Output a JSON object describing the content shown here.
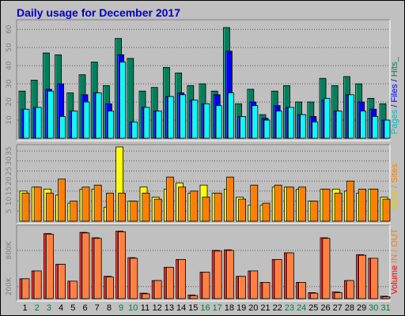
{
  "title": "Daily usage for December 2017",
  "colors": {
    "hits": "#00805c",
    "files": "#0000ff",
    "pages": "#00ffff",
    "visits": "#ffff00",
    "sites": "#ff8000",
    "kbytes": "#ff0000",
    "volume_fill": "#ff8040",
    "weekend": "#008040",
    "weekday": "#000000",
    "axis_text": "#808080"
  },
  "right_labels": {
    "top": [
      {
        "text": "Pages",
        "color": "#00c0c0"
      },
      {
        "text": " / ",
        "color": "#0000c0"
      },
      {
        "text": "Files",
        "color": "#0000ff"
      },
      {
        "text": " / ",
        "color": "#0000c0"
      },
      {
        "text": "Hits",
        "color": "#00805c"
      },
      {
        "text": "_",
        "color": "#00805c"
      }
    ],
    "middle": [
      {
        "text": "Visits",
        "color": "#e8c800"
      },
      {
        "text": " / ",
        "color": "#ff8000"
      },
      {
        "text": "Sites",
        "color": "#ff8000"
      }
    ],
    "bottom": [
      {
        "text": "Volume",
        "color": "#ff0000"
      },
      {
        "text": " ",
        "color": "#ff0000"
      },
      {
        "text": "IN",
        "color": "#ff8000"
      },
      {
        "text": " / ",
        "color": "#ff8000"
      },
      {
        "text": "OUT",
        "color": "#ff8000"
      }
    ]
  },
  "chart_data": [
    {
      "type": "bar",
      "panel": "hits_files_pages",
      "x": [
        1,
        2,
        3,
        4,
        5,
        6,
        7,
        8,
        9,
        10,
        11,
        12,
        13,
        14,
        15,
        16,
        17,
        18,
        19,
        20,
        21,
        22,
        23,
        24,
        25,
        26,
        27,
        28,
        29,
        30,
        31
      ],
      "x_labels": [
        "1",
        "2",
        "3",
        "4",
        "5",
        "6",
        "7",
        "8",
        "9",
        "10",
        "11",
        "12",
        "13",
        "14",
        "15",
        "16",
        "17",
        "18",
        "19",
        "20",
        "21",
        "22",
        "23",
        "24",
        "25",
        "26",
        "27",
        "28",
        "29",
        "30",
        "31"
      ],
      "weekend_days": [
        2,
        3,
        9,
        10,
        16,
        17,
        23,
        24,
        30,
        31
      ],
      "yticks": [
        10,
        20,
        30,
        40,
        50,
        60
      ],
      "ylim": [
        0,
        64
      ],
      "series": [
        {
          "name": "Hits",
          "color": "#00805c",
          "values": [
            26,
            32,
            47,
            46,
            25,
            35,
            42,
            29,
            55,
            44,
            26,
            28,
            39,
            36,
            29,
            30,
            26,
            61,
            19,
            27,
            13,
            26,
            29,
            20,
            20,
            33,
            29,
            34,
            30,
            22,
            19
          ]
        },
        {
          "name": "Files",
          "color": "#0000ff",
          "values": [
            16,
            17,
            27,
            30,
            15,
            24,
            25,
            19,
            46,
            9,
            17,
            15,
            23,
            25,
            21,
            19,
            24,
            48,
            12,
            20,
            11,
            18,
            17,
            13,
            12,
            21,
            15,
            24,
            20,
            16,
            10
          ]
        },
        {
          "name": "Pages",
          "color": "#00ffff",
          "values": [
            16,
            17,
            26,
            12,
            15,
            20,
            25,
            15,
            42,
            9,
            17,
            15,
            23,
            24,
            21,
            19,
            18,
            25,
            12,
            18,
            10,
            15,
            17,
            13,
            9,
            22,
            15,
            24,
            15,
            12,
            10
          ]
        }
      ]
    },
    {
      "type": "bar",
      "panel": "visits_sites",
      "x": [
        1,
        2,
        3,
        4,
        5,
        6,
        7,
        8,
        9,
        10,
        11,
        12,
        13,
        14,
        15,
        16,
        17,
        18,
        19,
        20,
        21,
        22,
        23,
        24,
        25,
        26,
        27,
        28,
        29,
        30,
        31
      ],
      "yticks": [
        5,
        10,
        15,
        20,
        25,
        30,
        35
      ],
      "ylim": [
        0,
        37
      ],
      "series": [
        {
          "name": "Visits",
          "color": "#ffff00",
          "values": [
            15,
            17,
            16,
            13,
            9,
            16,
            16,
            7,
            37,
            10,
            17,
            12,
            16,
            19,
            14,
            18,
            14,
            16,
            12,
            8,
            8,
            17,
            17,
            16,
            10,
            16,
            16,
            15,
            14,
            16,
            12
          ]
        },
        {
          "name": "Sites",
          "color": "#ff8000",
          "values": [
            14,
            17,
            14,
            21,
            10,
            17,
            18,
            14,
            14,
            10,
            14,
            11,
            22,
            17,
            15,
            12,
            14,
            22,
            11,
            18,
            9,
            18,
            17,
            17,
            10,
            16,
            14,
            20,
            16,
            16,
            11
          ]
        }
      ]
    },
    {
      "type": "bar",
      "panel": "volume",
      "x": [
        1,
        2,
        3,
        4,
        5,
        6,
        7,
        8,
        9,
        10,
        11,
        12,
        13,
        14,
        15,
        16,
        17,
        18,
        19,
        20,
        21,
        22,
        23,
        24,
        25,
        26,
        27,
        28,
        29,
        30,
        31
      ],
      "ytick_labels": [
        "200K",
        "800K"
      ],
      "yticks": [
        200000,
        800000
      ],
      "ylim": [
        0,
        1180000
      ],
      "series": [
        {
          "name": "KBytes",
          "color": "#ff0000",
          "values": [
            330000,
            460000,
            1080000,
            570000,
            290000,
            1100000,
            1010000,
            370000,
            1120000,
            680000,
            90000,
            300000,
            520000,
            650000,
            60000,
            440000,
            800000,
            810000,
            370000,
            460000,
            270000,
            650000,
            760000,
            270000,
            100000,
            1010000,
            110000,
            300000,
            730000,
            670000,
            40000
          ]
        },
        {
          "name": "Volume",
          "color": "#ff8040",
          "values": [
            330000,
            460000,
            1070000,
            570000,
            290000,
            1090000,
            1000000,
            360000,
            1110000,
            670000,
            80000,
            300000,
            520000,
            650000,
            50000,
            440000,
            790000,
            800000,
            370000,
            460000,
            270000,
            650000,
            760000,
            270000,
            90000,
            1000000,
            100000,
            300000,
            720000,
            670000,
            30000
          ]
        }
      ]
    }
  ]
}
